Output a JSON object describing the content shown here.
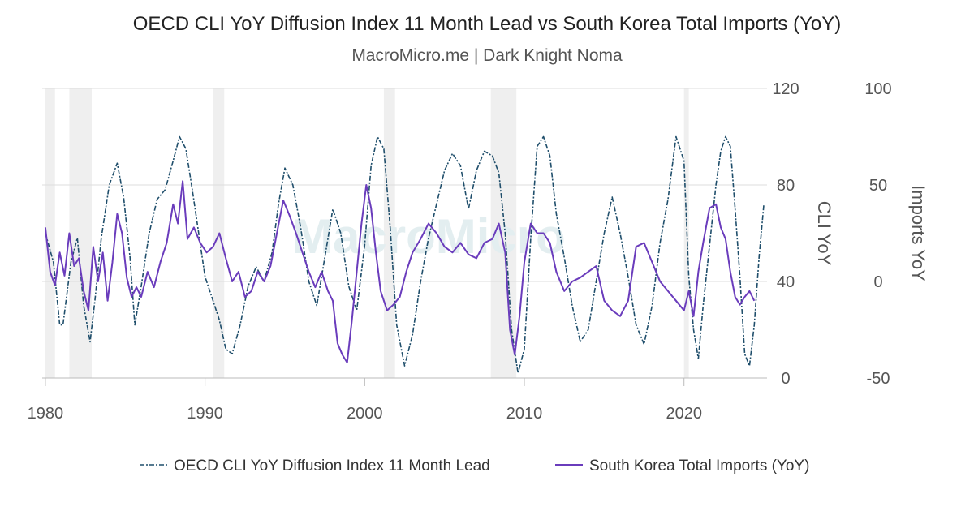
{
  "chart_data": {
    "type": "line",
    "title": "OECD CLI YoY Diffusion Index 11 Month Lead vs South Korea Total Imports (YoY)",
    "subtitle": "MacroMicro.me | Dark Knight Noma",
    "watermark": "MacroMicro",
    "x_axis": {
      "range": [
        1979.8,
        2025.2
      ],
      "ticks": [
        1980,
        1990,
        2000,
        2010,
        2020
      ]
    },
    "y_axes": [
      {
        "id": "cli",
        "label": "CLI YoY",
        "range": [
          0,
          120
        ],
        "ticks": [
          0,
          40,
          80,
          120
        ]
      },
      {
        "id": "imports",
        "label": "Imports YoY",
        "range": [
          -50,
          100
        ],
        "ticks": [
          -50,
          0,
          50,
          100
        ]
      }
    ],
    "recessions": [
      [
        1980.0,
        1980.6
      ],
      [
        1981.5,
        1982.9
      ],
      [
        1990.5,
        1991.2
      ],
      [
        2001.2,
        2001.9
      ],
      [
        2007.9,
        2009.5
      ],
      [
        2020.0,
        2020.3
      ]
    ],
    "series": [
      {
        "name": "OECD CLI YoY Diffusion Index 11 Month Lead",
        "axis": "cli",
        "style": "dashdot",
        "color": "#1f4e6b",
        "x": [
          1980,
          1980.5,
          1980.9,
          1981.1,
          1981.6,
          1982,
          1982.4,
          1982.8,
          1983.1,
          1983.5,
          1984,
          1984.5,
          1984.9,
          1985.3,
          1985.6,
          1986,
          1986.5,
          1987,
          1987.5,
          1988,
          1988.4,
          1988.8,
          1989.2,
          1989.6,
          1990,
          1990.5,
          1990.9,
          1991.3,
          1991.7,
          1992.2,
          1992.7,
          1993.2,
          1993.7,
          1994.2,
          1994.6,
          1995,
          1995.5,
          1996,
          1996.5,
          1997,
          1997.5,
          1998,
          1998.5,
          1999,
          1999.5,
          2000,
          2000.4,
          2000.8,
          2001.2,
          2001.6,
          2002,
          2002.5,
          2003,
          2003.5,
          2004,
          2004.5,
          2005,
          2005.5,
          2006,
          2006.5,
          2007,
          2007.5,
          2008,
          2008.4,
          2008.8,
          2009.2,
          2009.6,
          2010,
          2010.4,
          2010.8,
          2011.2,
          2011.6,
          2012,
          2012.5,
          2013,
          2013.5,
          2014,
          2014.5,
          2015,
          2015.5,
          2016,
          2016.5,
          2017,
          2017.5,
          2018,
          2018.5,
          2019,
          2019.5,
          2020,
          2020.3,
          2020.6,
          2020.9,
          2021.2,
          2021.6,
          2022,
          2022.3,
          2022.6,
          2022.9,
          2023.2,
          2023.5,
          2023.8,
          2024.1,
          2024.4,
          2024.7,
          2025
        ],
        "values": [
          60,
          48,
          22,
          22,
          48,
          58,
          30,
          15,
          32,
          58,
          80,
          89,
          75,
          50,
          22,
          38,
          60,
          74,
          78,
          90,
          100,
          95,
          78,
          60,
          42,
          32,
          24,
          12,
          10,
          22,
          38,
          46,
          40,
          52,
          72,
          87,
          80,
          62,
          40,
          30,
          50,
          70,
          60,
          38,
          28,
          55,
          88,
          100,
          95,
          62,
          22,
          5,
          18,
          40,
          58,
          72,
          86,
          93,
          88,
          70,
          86,
          94,
          92,
          85,
          60,
          20,
          2,
          12,
          58,
          96,
          100,
          92,
          68,
          50,
          30,
          15,
          20,
          40,
          60,
          75,
          60,
          42,
          22,
          14,
          30,
          56,
          74,
          100,
          90,
          42,
          20,
          8,
          30,
          55,
          80,
          94,
          100,
          96,
          70,
          42,
          10,
          5,
          22,
          50,
          72
        ]
      },
      {
        "name": "South Korea Total Imports (YoY)",
        "axis": "imports",
        "style": "solid",
        "color": "#6a3cbc",
        "x": [
          1980,
          1980.3,
          1980.6,
          1980.9,
          1981.2,
          1981.5,
          1981.8,
          1982.1,
          1982.4,
          1982.7,
          1983,
          1983.3,
          1983.6,
          1983.9,
          1984.2,
          1984.5,
          1984.8,
          1985.1,
          1985.4,
          1985.7,
          1986,
          1986.4,
          1986.8,
          1987.2,
          1987.6,
          1988,
          1988.3,
          1988.6,
          1988.9,
          1989.3,
          1989.7,
          1990.1,
          1990.5,
          1990.9,
          1991.3,
          1991.7,
          1992.1,
          1992.5,
          1992.9,
          1993.3,
          1993.7,
          1994.1,
          1994.5,
          1994.9,
          1995.3,
          1995.7,
          1996.1,
          1996.5,
          1996.9,
          1997.3,
          1997.7,
          1998,
          1998.3,
          1998.6,
          1998.9,
          1999.2,
          1999.5,
          1999.8,
          2000.1,
          2000.4,
          2000.7,
          2001,
          2001.4,
          2001.8,
          2002.2,
          2002.6,
          2003,
          2003.5,
          2004,
          2004.5,
          2005,
          2005.5,
          2006,
          2006.5,
          2007,
          2007.5,
          2008,
          2008.4,
          2008.8,
          2009.1,
          2009.4,
          2009.7,
          2010,
          2010.4,
          2010.8,
          2011.2,
          2011.6,
          2012,
          2012.5,
          2013,
          2013.5,
          2014,
          2014.5,
          2015,
          2015.5,
          2016,
          2016.5,
          2017,
          2017.5,
          2018,
          2018.5,
          2019,
          2019.5,
          2020,
          2020.3,
          2020.6,
          2020.9,
          2021.2,
          2021.6,
          2022,
          2022.3,
          2022.6,
          2022.9,
          2023.2,
          2023.5,
          2023.8,
          2024.1,
          2024.4
        ],
        "values": [
          28,
          5,
          -2,
          15,
          3,
          25,
          8,
          12,
          -5,
          -15,
          18,
          0,
          15,
          -10,
          10,
          35,
          25,
          2,
          -8,
          -3,
          -8,
          5,
          -3,
          10,
          20,
          40,
          30,
          52,
          22,
          28,
          20,
          15,
          18,
          25,
          12,
          0,
          5,
          -8,
          -5,
          5,
          0,
          8,
          25,
          42,
          34,
          25,
          15,
          5,
          -3,
          5,
          -5,
          -10,
          -32,
          -38,
          -42,
          -20,
          5,
          30,
          50,
          38,
          15,
          -5,
          -15,
          -12,
          -8,
          5,
          15,
          22,
          30,
          25,
          18,
          15,
          20,
          14,
          12,
          20,
          22,
          30,
          15,
          -25,
          -38,
          -18,
          10,
          30,
          25,
          25,
          20,
          5,
          -5,
          0,
          2,
          5,
          8,
          -10,
          -15,
          -18,
          -10,
          18,
          20,
          10,
          0,
          -5,
          -10,
          -15,
          -5,
          -18,
          5,
          20,
          38,
          40,
          28,
          22,
          5,
          -8,
          -12,
          -8,
          -5,
          -10
        ]
      }
    ]
  }
}
